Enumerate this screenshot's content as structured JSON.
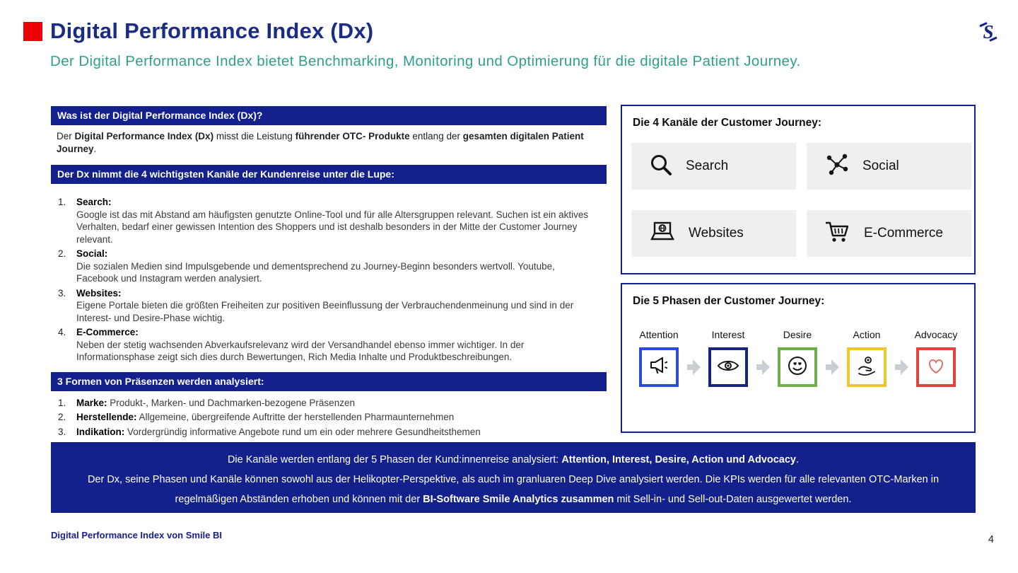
{
  "header": {
    "title": "Digital Performance Index (Dx)",
    "subtitle": "Der Digital Performance Index bietet Benchmarking, Monitoring und Optimierung für die digitale Patient Journey."
  },
  "left": {
    "section1_title": "Was ist der Digital Performance Index (Dx)?",
    "intro_segments": [
      {
        "t": "Der ",
        "b": false
      },
      {
        "t": "Digital Performance Index (Dx)",
        "b": true
      },
      {
        "t": " misst die Leistung ",
        "b": false
      },
      {
        "t": "führender OTC-  Produkte",
        "b": true
      },
      {
        "t": " entlang der ",
        "b": false
      },
      {
        "t": "gesamten digitalen Patient Journey",
        "b": true
      },
      {
        "t": ".",
        "b": false
      }
    ],
    "section2_title": "Der Dx nimmt die 4 wichtigsten Kanäle der Kundenreise unter die Lupe:",
    "channels": {
      "items": [
        {
          "num": "1.",
          "title": "Search:",
          "body": "Google ist das mit Abstand am häufigsten genutzte Online-Tool und für alle  Altersgruppen relevant. Suchen ist ein aktives Verhalten, bedarf einer gewissen Intention des Shoppers und ist deshalb besonders in der Mitte der Customer Journey relevant."
        },
        {
          "num": "2.",
          "title": "Social:",
          "body": "Die sozialen Medien sind Impulsgebende und dementsprechend zu Journey-Beginn besonders wertvoll. Youtube, Facebook und Instagram werden  analysiert."
        },
        {
          "num": "3.",
          "title": "Websites:",
          "body": "Eigene Portale bieten die größten Freiheiten zur positiven Beeinflussung der Verbrauchendenmeinung und sind in der Interest- und Desire-Phase wichtig."
        },
        {
          "num": "4.",
          "title": "E-Commerce:",
          "body": "Neben der stetig wachsenden Abverkaufsrelevanz wird der Versandhandel ebenso immer wichtiger. In der Informationsphase zeigt sich dies durch Bewertungen, Rich Media Inhalte und Produktbeschreibungen."
        }
      ]
    },
    "section3_title": "3 Formen von Präsenzen werden analysiert:",
    "presences": {
      "items": [
        {
          "num": "1.",
          "title": "Marke:",
          "body": " Produkt-, Marken- und Dachmarken-bezogene Präsenzen"
        },
        {
          "num": "2.",
          "title": "Herstellende:",
          "body": " Allgemeine, übergreifende Auftritte der herstellenden Pharmaunternehmen"
        },
        {
          "num": "3.",
          "title": "Indikation:",
          "body": " Vordergründig informative Angebote rund um ein oder mehrere Gesundheitsthemen"
        }
      ]
    }
  },
  "right": {
    "channels_box": {
      "title": "Die 4 Kanäle der Customer Journey:",
      "tiles": [
        {
          "label": "Search",
          "icon": "search-icon"
        },
        {
          "label": "Social",
          "icon": "social-network-icon"
        },
        {
          "label": "Websites",
          "icon": "website-laptop-icon"
        },
        {
          "label": "E-Commerce",
          "icon": "shopping-cart-icon"
        }
      ]
    },
    "phases_box": {
      "title": "Die 5 Phasen der Customer Journey:",
      "phases": [
        {
          "label": "Attention",
          "color": "#2B4BD8",
          "icon": "megaphone-icon"
        },
        {
          "label": "Interest",
          "color": "#18257E",
          "icon": "eye-icon"
        },
        {
          "label": "Desire",
          "color": "#6FAE4B",
          "icon": "smiling-face-icon"
        },
        {
          "label": "Action",
          "color": "#F0C62F",
          "icon": "hand-coin-icon"
        },
        {
          "label": "Advocacy",
          "color": "#E2423B",
          "icon": "heart-icon"
        }
      ]
    }
  },
  "banner": {
    "line1_segments": [
      {
        "t": "Die Kanäle werden entlang der 5 Phasen der Kund:innenreise analysiert: ",
        "b": false
      },
      {
        "t": "Attention, Interest, Desire, Action und Advocacy",
        "b": true
      },
      {
        "t": ".",
        "b": false
      }
    ],
    "line2": "Der Dx, seine Phasen und Kanäle können sowohl aus der Helikopter-Perspektive, als auch im granluaren Deep Dive  analysiert werden. Die KPIs werden für alle relevanten OTC-Marken in",
    "line3_segments": [
      {
        "t": "regelmäßigen Abständen erhoben und können mit der ",
        "b": false
      },
      {
        "t": "BI-Software Smile Analytics zusammen",
        "b": true
      },
      {
        "t": "  mit Sell-in- und Sell-out-Daten ausgewertet werden.",
        "b": false
      }
    ]
  },
  "footer": {
    "left": "Digital Performance Index von Smile BI",
    "page": "4"
  },
  "colors": {
    "navy": "#14218C",
    "teal": "#2FA08C",
    "red": "#EC0008"
  }
}
